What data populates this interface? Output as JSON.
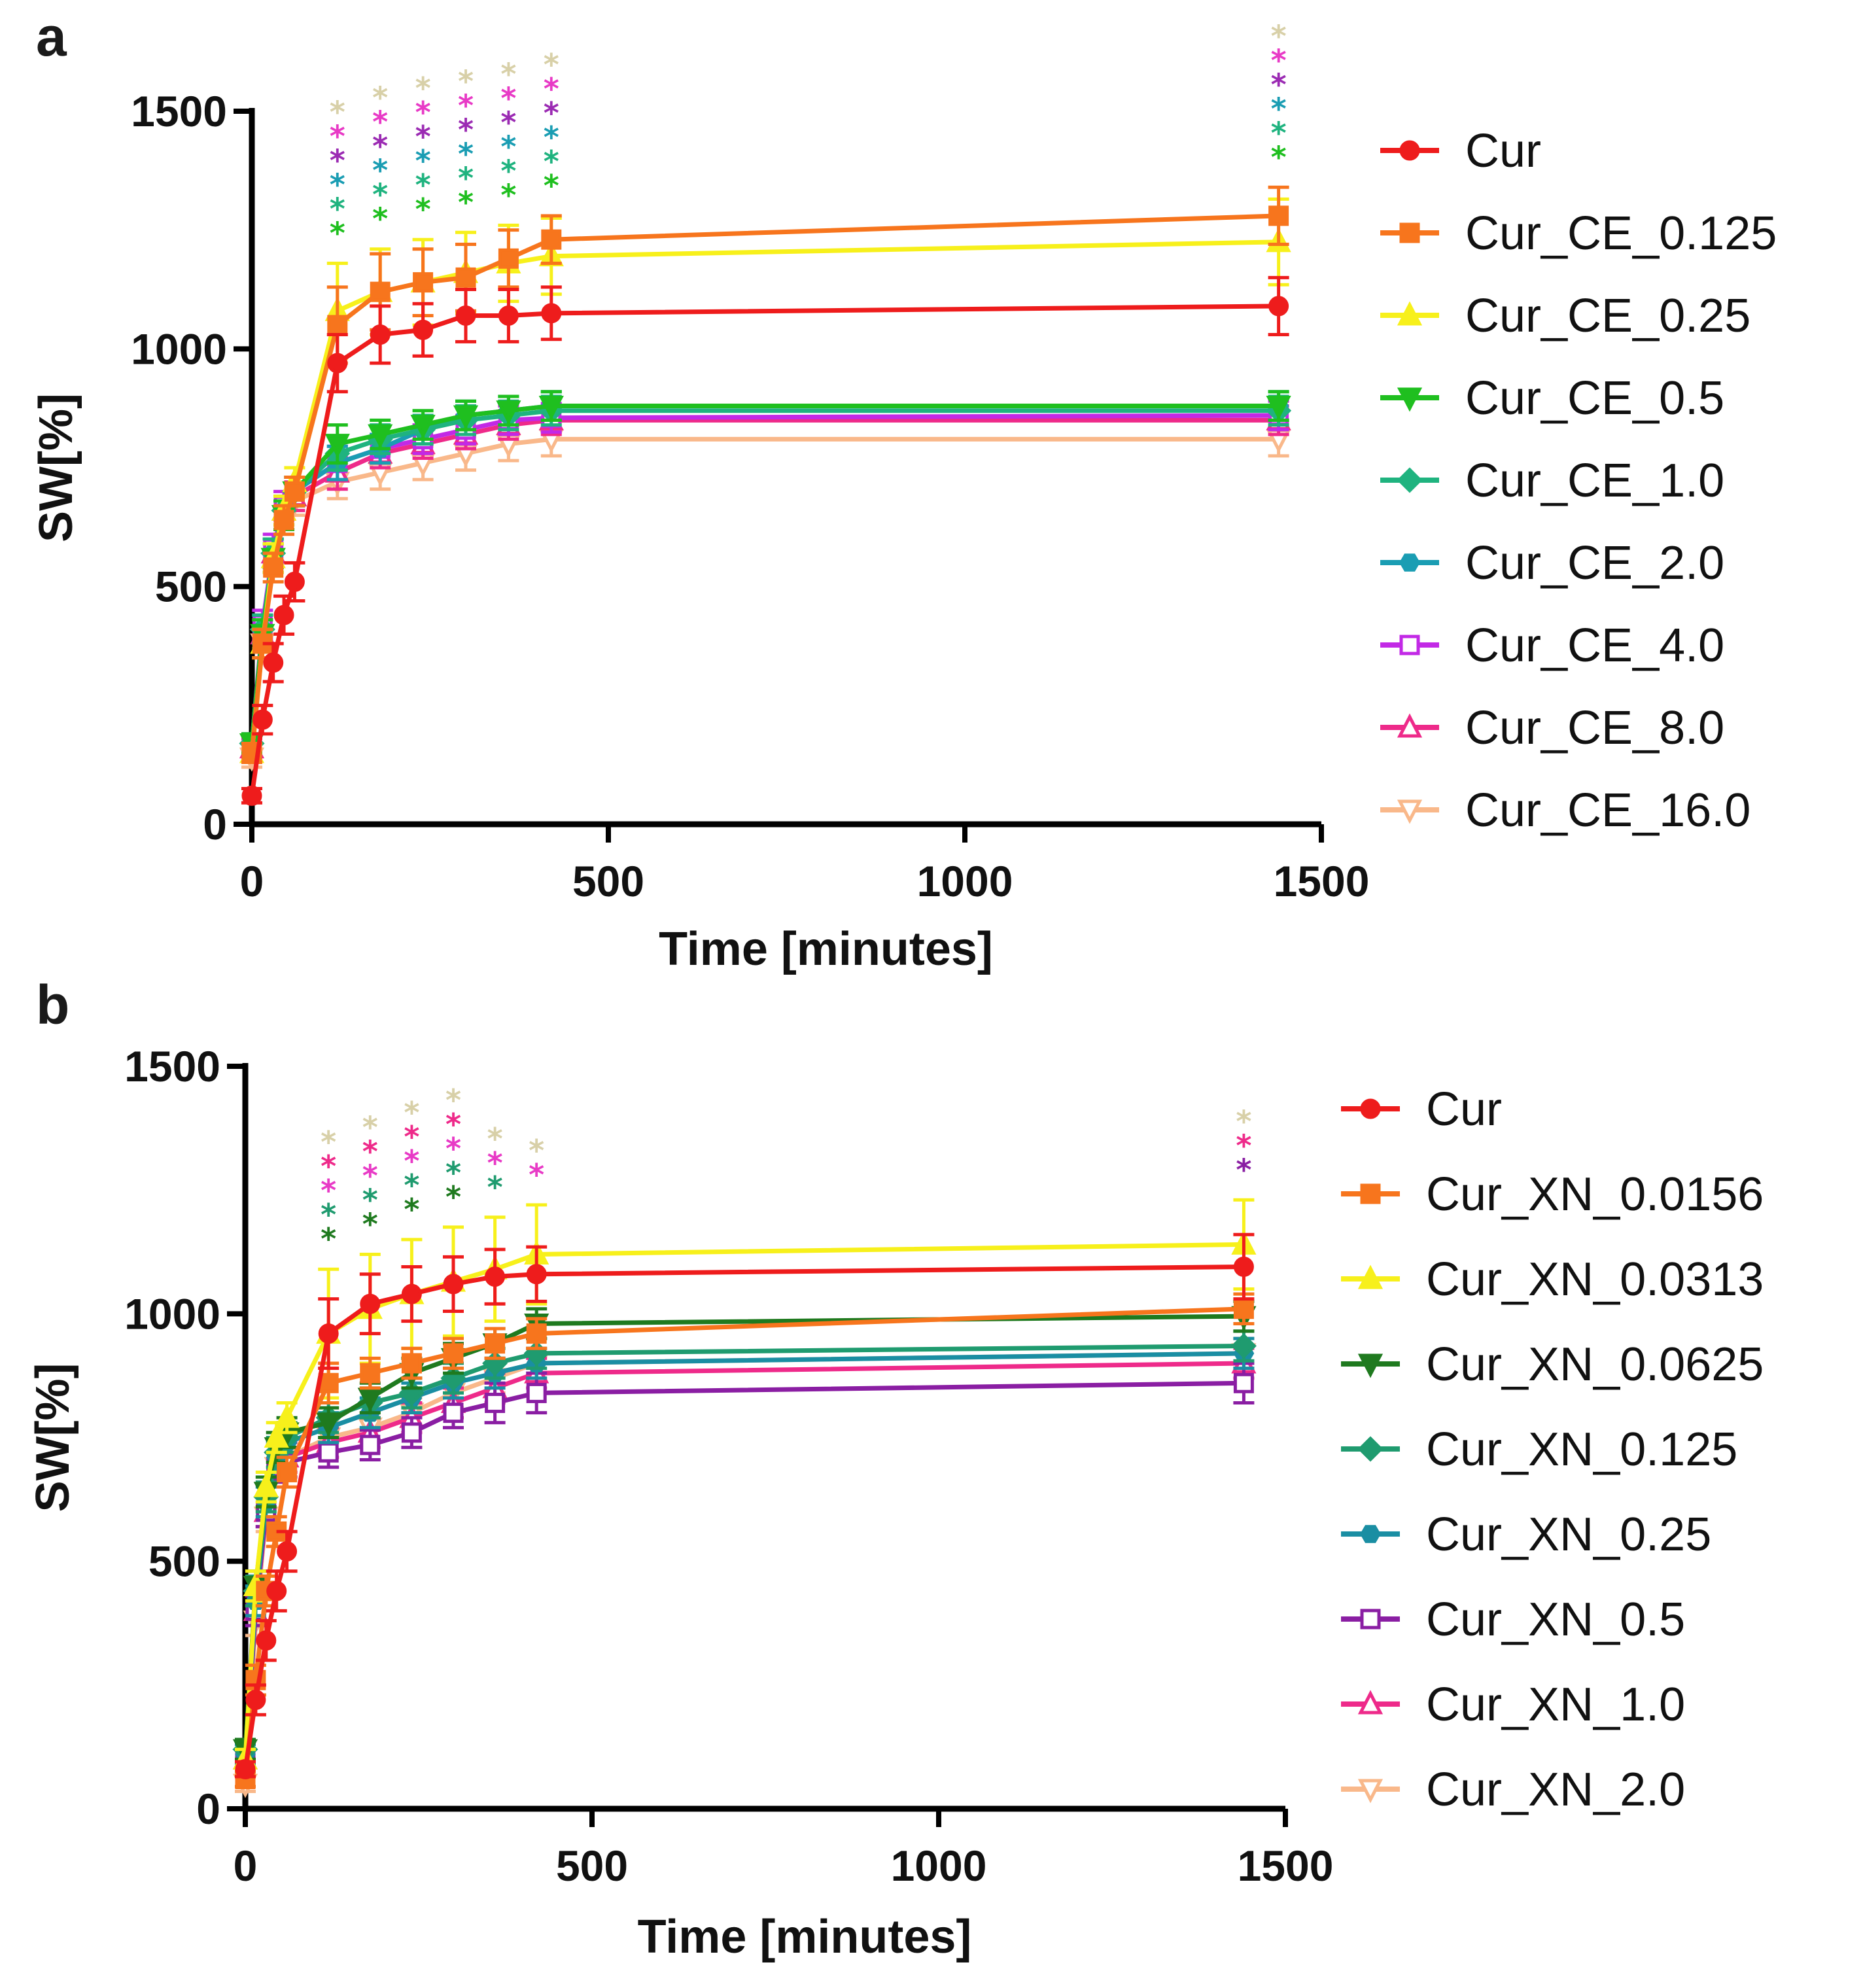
{
  "chart_data": [
    {
      "panel": "a",
      "type": "line",
      "xlabel": "Time [minutes]",
      "ylabel": "SW[%]",
      "xlim": [
        0,
        1500
      ],
      "ylim": [
        0,
        1500
      ],
      "xticks": [
        0,
        500,
        1000,
        1500
      ],
      "yticks": [
        0,
        500,
        1000,
        1500
      ],
      "x": [
        0,
        15,
        30,
        45,
        60,
        120,
        180,
        240,
        300,
        360,
        420,
        1440
      ],
      "series": [
        {
          "name": "Cur",
          "color": "#ee1c1c",
          "marker": "circle",
          "values": [
            60,
            220,
            340,
            440,
            510,
            970,
            1030,
            1040,
            1070,
            1070,
            1075,
            1090
          ],
          "err": [
            15,
            30,
            40,
            40,
            40,
            60,
            60,
            55,
            55,
            55,
            55,
            60
          ]
        },
        {
          "name": "Cur_CE_0.125",
          "color": "#f7751d",
          "marker": "square",
          "values": [
            150,
            380,
            540,
            640,
            700,
            1050,
            1120,
            1140,
            1150,
            1190,
            1230,
            1280
          ],
          "err": [
            20,
            30,
            30,
            30,
            30,
            80,
            80,
            70,
            70,
            60,
            50,
            60
          ]
        },
        {
          "name": "Cur_CE_0.25",
          "color": "#f7f01b",
          "marker": "triangle-up",
          "values": [
            150,
            380,
            560,
            660,
            720,
            1080,
            1120,
            1140,
            1160,
            1180,
            1195,
            1225
          ],
          "err": [
            20,
            30,
            30,
            30,
            30,
            100,
            90,
            90,
            85,
            80,
            80,
            90
          ]
        },
        {
          "name": "Cur_CE_0.5",
          "color": "#1fbf1f",
          "marker": "triangle-down",
          "values": [
            170,
            400,
            560,
            650,
            700,
            800,
            820,
            840,
            860,
            870,
            880,
            880
          ],
          "err": [
            20,
            30,
            30,
            30,
            30,
            40,
            30,
            30,
            30,
            30,
            30,
            30
          ]
        },
        {
          "name": "Cur_CE_1.0",
          "color": "#1fb37f",
          "marker": "diamond",
          "values": [
            170,
            410,
            570,
            660,
            700,
            780,
            810,
            830,
            850,
            860,
            870,
            870
          ],
          "err": [
            20,
            30,
            30,
            30,
            30,
            35,
            30,
            30,
            30,
            30,
            30,
            30
          ]
        },
        {
          "name": "Cur_CE_2.0",
          "color": "#1a9db3",
          "marker": "hexagon",
          "values": [
            170,
            410,
            570,
            660,
            700,
            760,
            790,
            830,
            860,
            870,
            880,
            880
          ],
          "err": [
            20,
            30,
            30,
            30,
            30,
            35,
            30,
            30,
            30,
            30,
            30,
            30
          ]
        },
        {
          "name": "Cur_CE_4.0",
          "color": "#c229e6",
          "marker": "square-open",
          "values": [
            170,
            420,
            580,
            670,
            700,
            760,
            790,
            810,
            830,
            850,
            855,
            860
          ],
          "err": [
            20,
            30,
            30,
            30,
            30,
            35,
            30,
            30,
            30,
            30,
            30,
            30
          ]
        },
        {
          "name": "Cur_CE_8.0",
          "color": "#ee2a8a",
          "marker": "triangle-open",
          "values": [
            160,
            400,
            570,
            660,
            690,
            740,
            780,
            800,
            820,
            840,
            850,
            850
          ],
          "err": [
            20,
            30,
            30,
            30,
            30,
            35,
            30,
            30,
            30,
            30,
            30,
            30
          ]
        },
        {
          "name": "Cur_CE_16.0",
          "color": "#f9b88a",
          "marker": "triangle-down-open",
          "values": [
            140,
            380,
            560,
            650,
            680,
            720,
            740,
            760,
            780,
            800,
            810,
            810
          ],
          "err": [
            20,
            30,
            30,
            30,
            30,
            35,
            35,
            35,
            35,
            35,
            35,
            35
          ]
        }
      ],
      "significance": [
        {
          "x": 120,
          "colors": [
            "#1fbf1f",
            "#1fb37f",
            "#1a9db3",
            "#9b2bb3",
            "#e83ac6",
            "#d8d0a8"
          ]
        },
        {
          "x": 180,
          "colors": [
            "#1fbf1f",
            "#1fb37f",
            "#1a9db3",
            "#9b2bb3",
            "#e83ac6",
            "#d8d0a8"
          ]
        },
        {
          "x": 240,
          "colors": [
            "#1fbf1f",
            "#1fb37f",
            "#1a9db3",
            "#9b2bb3",
            "#e83ac6",
            "#d8d0a8"
          ]
        },
        {
          "x": 300,
          "colors": [
            "#1fbf1f",
            "#1fb37f",
            "#1a9db3",
            "#9b2bb3",
            "#e83ac6",
            "#d8d0a8"
          ]
        },
        {
          "x": 360,
          "colors": [
            "#1fbf1f",
            "#1fb37f",
            "#1a9db3",
            "#9b2bb3",
            "#e83ac6",
            "#d8d0a8"
          ]
        },
        {
          "x": 420,
          "colors": [
            "#1fbf1f",
            "#1fb37f",
            "#1a9db3",
            "#9b2bb3",
            "#e83ac6",
            "#d8d0a8"
          ]
        },
        {
          "x": 1440,
          "colors": [
            "#1fbf1f",
            "#1fb37f",
            "#1a9db3",
            "#9b2bb3",
            "#e83ac6",
            "#d8d0a8"
          ]
        }
      ]
    },
    {
      "panel": "b",
      "type": "line",
      "xlabel": "Time [minutes]",
      "ylabel": "SW[%]",
      "xlim": [
        0,
        1500
      ],
      "ylim": [
        0,
        1500
      ],
      "xticks": [
        0,
        500,
        1000,
        1500
      ],
      "yticks": [
        0,
        500,
        1000,
        1500
      ],
      "x": [
        0,
        15,
        30,
        45,
        60,
        120,
        180,
        240,
        300,
        360,
        420,
        1440
      ],
      "series": [
        {
          "name": "Cur",
          "color": "#ee1c1c",
          "marker": "circle",
          "values": [
            80,
            220,
            340,
            440,
            520,
            960,
            1020,
            1040,
            1060,
            1075,
            1080,
            1095
          ],
          "err": [
            15,
            30,
            40,
            40,
            40,
            70,
            60,
            55,
            55,
            55,
            55,
            65
          ]
        },
        {
          "name": "Cur_XN_0.0156",
          "color": "#f7751d",
          "marker": "square",
          "values": [
            60,
            260,
            440,
            560,
            680,
            860,
            880,
            900,
            920,
            940,
            960,
            1010
          ],
          "err": [
            15,
            30,
            30,
            30,
            30,
            40,
            30,
            30,
            30,
            30,
            30,
            30
          ]
        },
        {
          "name": "Cur_XN_0.0313",
          "color": "#f7f01b",
          "marker": "triangle-up",
          "values": [
            100,
            450,
            650,
            750,
            790,
            960,
            1010,
            1040,
            1065,
            1090,
            1120,
            1140
          ],
          "err": [
            20,
            30,
            30,
            30,
            30,
            130,
            110,
            110,
            110,
            105,
            100,
            90
          ]
        },
        {
          "name": "Cur_XN_0.0625",
          "color": "#1f7a1f",
          "marker": "triangle-down",
          "values": [
            120,
            450,
            640,
            730,
            760,
            780,
            830,
            880,
            910,
            940,
            980,
            995
          ],
          "err": [
            20,
            30,
            30,
            30,
            30,
            30,
            30,
            30,
            30,
            30,
            30,
            30
          ]
        },
        {
          "name": "Cur_XN_0.125",
          "color": "#1f9b6f",
          "marker": "diamond",
          "values": [
            120,
            440,
            630,
            720,
            750,
            790,
            820,
            840,
            870,
            900,
            920,
            935
          ],
          "err": [
            20,
            30,
            30,
            30,
            30,
            30,
            30,
            30,
            30,
            30,
            30,
            30
          ]
        },
        {
          "name": "Cur_XN_0.25",
          "color": "#1a8ea3",
          "marker": "hexagon",
          "values": [
            110,
            420,
            620,
            710,
            740,
            770,
            800,
            830,
            860,
            880,
            900,
            920
          ],
          "err": [
            20,
            30,
            30,
            30,
            30,
            30,
            30,
            30,
            30,
            30,
            30,
            30
          ]
        },
        {
          "name": "Cur_XN_0.5",
          "color": "#8a1ea3",
          "marker": "square-open",
          "values": [
            100,
            400,
            600,
            690,
            700,
            720,
            735,
            760,
            800,
            820,
            840,
            860
          ],
          "err": [
            20,
            30,
            30,
            30,
            30,
            30,
            30,
            30,
            30,
            40,
            40,
            40
          ]
        },
        {
          "name": "Cur_XN_1.0",
          "color": "#ee2a8a",
          "marker": "triangle-open",
          "values": [
            100,
            400,
            600,
            690,
            710,
            740,
            760,
            790,
            820,
            850,
            880,
            900
          ],
          "err": [
            20,
            30,
            30,
            30,
            30,
            30,
            30,
            30,
            30,
            30,
            30,
            30
          ]
        },
        {
          "name": "Cur_XN_2.0",
          "color": "#f9b88a",
          "marker": "triangle-down-open",
          "values": [
            50,
            380,
            590,
            690,
            710,
            750,
            770,
            800,
            840,
            870,
            900,
            920
          ],
          "err": [
            15,
            30,
            30,
            30,
            30,
            30,
            30,
            30,
            30,
            30,
            30,
            30
          ]
        }
      ],
      "significance": [
        {
          "x": 120,
          "colors": [
            "#1f7a1f",
            "#1f9b6f",
            "#e83ac6",
            "#ee2a8a",
            "#d8d0a8"
          ]
        },
        {
          "x": 180,
          "colors": [
            "#1f7a1f",
            "#1f9b6f",
            "#e83ac6",
            "#ee2a8a",
            "#d8d0a8"
          ]
        },
        {
          "x": 240,
          "colors": [
            "#1f7a1f",
            "#1f9b6f",
            "#e83ac6",
            "#ee2a8a",
            "#d8d0a8"
          ]
        },
        {
          "x": 300,
          "colors": [
            "#1f7a1f",
            "#1f9b6f",
            "#e83ac6",
            "#ee2a8a",
            "#d8d0a8"
          ]
        },
        {
          "x": 360,
          "colors": [
            "#1f9b6f",
            "#e83ac6",
            "#d8d0a8"
          ]
        },
        {
          "x": 420,
          "colors": [
            "#e83ac6",
            "#d8d0a8"
          ]
        },
        {
          "x": 1440,
          "colors": [
            "#8a1ea3",
            "#ee2a8a",
            "#d8d0a8"
          ]
        }
      ]
    }
  ],
  "panels": {
    "a": {
      "label": "a"
    },
    "b": {
      "label": "b"
    }
  }
}
